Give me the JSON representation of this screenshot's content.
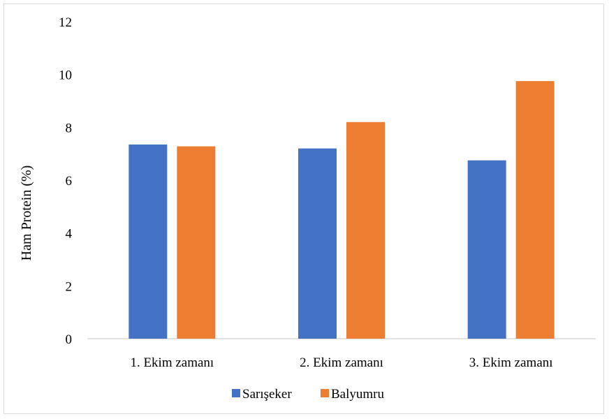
{
  "chart_data": {
    "type": "bar",
    "title": "",
    "xlabel": "",
    "ylabel": "Ham Protein (%)",
    "categories": [
      "1. Ekim zamanı",
      "2. Ekim zamanı",
      "3. Ekim zamanı"
    ],
    "series": [
      {
        "name": "Sarışeker",
        "color": "#4472c4",
        "values": [
          7.35,
          7.2,
          6.75
        ]
      },
      {
        "name": "Balyumru",
        "color": "#ed7d31",
        "values": [
          7.28,
          8.2,
          9.75
        ]
      }
    ],
    "ylim": [
      0,
      12
    ],
    "yticks": [
      0,
      2,
      4,
      6,
      8,
      10,
      12
    ],
    "grid": false,
    "legend_position": "bottom"
  }
}
